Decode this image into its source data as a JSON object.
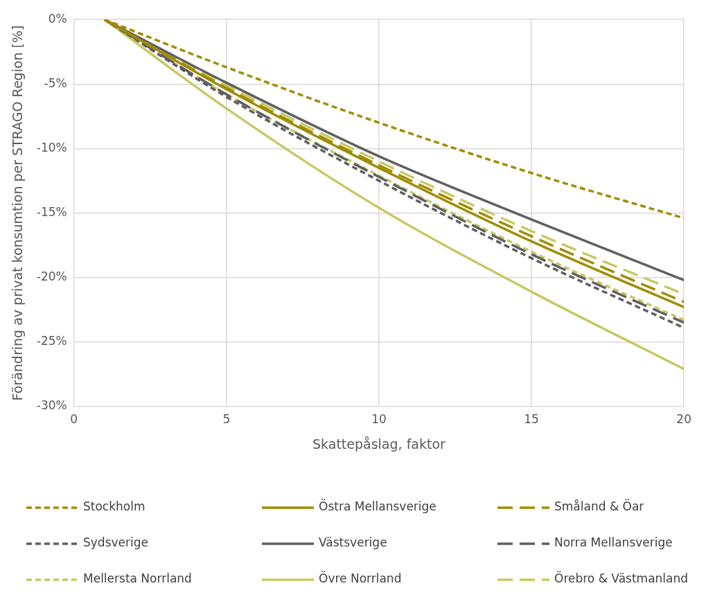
{
  "chart_data": {
    "type": "line",
    "xlabel": "Skattepåslag, faktor",
    "ylabel": "Förändring av privat konsumtion per STRAGO Region [%]",
    "xlim": [
      0,
      20
    ],
    "xticks": [
      0,
      5,
      10,
      15,
      20
    ],
    "ylim": [
      -30,
      0
    ],
    "yticks": [
      {
        "value": -30,
        "label": "-30%"
      },
      {
        "value": -25,
        "label": "-25%"
      },
      {
        "value": -20,
        "label": "-20%"
      },
      {
        "value": -15,
        "label": "-15%"
      },
      {
        "value": -10,
        "label": "-10%"
      },
      {
        "value": -5,
        "label": "-5%"
      },
      {
        "value": 0,
        "label": "0%"
      }
    ],
    "grid": true,
    "legend": "bottom",
    "marker": "none",
    "x": [
      1,
      5,
      10,
      15,
      20
    ],
    "series": [
      {
        "name": "Stockholm",
        "color": "#a08c00",
        "line_style": "dotted",
        "values": [
          0,
          -3.7,
          -8.0,
          -11.9,
          -15.4
        ]
      },
      {
        "name": "Östra Mellansverige",
        "color": "#a08c00",
        "line_style": "solid",
        "values": [
          0,
          -5.4,
          -11.5,
          -17.2,
          -22.3
        ]
      },
      {
        "name": "Småland & Öar",
        "color": "#a08c00",
        "line_style": "dashed",
        "values": [
          0,
          -5.3,
          -11.3,
          -16.8,
          -21.9
        ]
      },
      {
        "name": "Sydsverige",
        "color": "#5f5f5f",
        "line_style": "dotted",
        "values": [
          0,
          -6.0,
          -12.5,
          -18.5,
          -23.9
        ]
      },
      {
        "name": "Västsverige",
        "color": "#5f5f5f",
        "line_style": "solid",
        "values": [
          0,
          -4.9,
          -10.6,
          -15.5,
          -20.2
        ]
      },
      {
        "name": "Norra Mellansverige",
        "color": "#5f5f5f",
        "line_style": "dashed",
        "values": [
          0,
          -5.8,
          -12.2,
          -18.2,
          -23.5
        ]
      },
      {
        "name": "Mellersta Norrland",
        "color": "#c8c864",
        "line_style": "dotted",
        "values": [
          0,
          -5.8,
          -12.1,
          -18.0,
          -23.3
        ]
      },
      {
        "name": "Övre Norrland",
        "color": "#c8c864",
        "line_style": "solid",
        "values": [
          0,
          -6.9,
          -14.6,
          -21.1,
          -27.1
        ]
      },
      {
        "name": "Örebro & Västmanland",
        "color": "#c8c864",
        "line_style": "dashed",
        "values": [
          0,
          -5.1,
          -11.0,
          -16.4,
          -21.3
        ]
      }
    ]
  }
}
